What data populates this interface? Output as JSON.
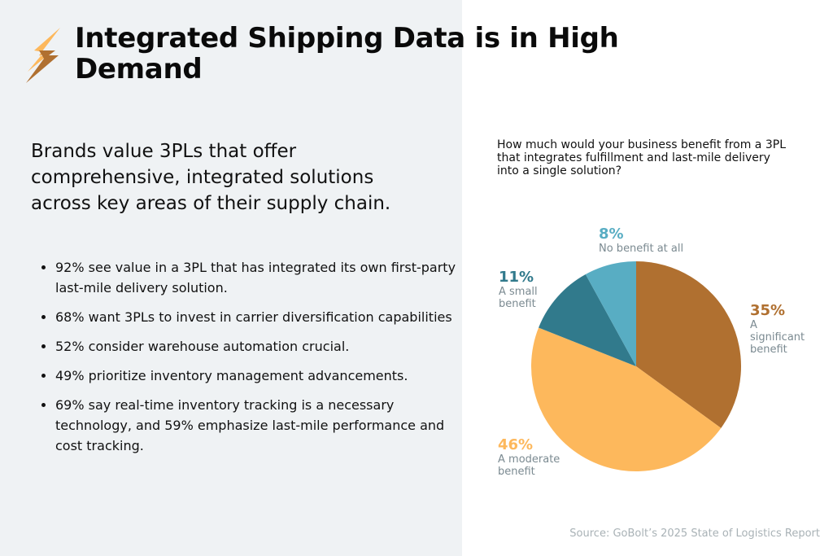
{
  "title": "Integrated Shipping Data is in High Demand",
  "logo_icon": "lightning-bolt-icon",
  "subhead": "Brands value 3PLs that offer comprehensive, integrated solutions across key areas of their supply chain.",
  "bullets": [
    "92% see value in a 3PL that has integrated its own first-party last-mile delivery solution.",
    "68% want 3PLs to invest in carrier diversification capabilities",
    "52% consider warehouse automation crucial.",
    "49% prioritize inventory management advancements.",
    "69% say real-time inventory tracking is a necessary technology, and 59% emphasize last-mile performance and cost tracking."
  ],
  "source": "Source: GoBolt’s 2025 State of Logistics Report",
  "chart_data": {
    "type": "pie",
    "title": "How much would your business benefit from a 3PL that integrates fulfillment and last-mile delivery into a single solution?",
    "start": "top, clockwise",
    "slices": [
      {
        "label": "A significant benefit",
        "value": 35,
        "value_label": "35%",
        "color": "#b07030"
      },
      {
        "label": "A moderate benefit",
        "value": 46,
        "value_label": "46%",
        "color": "#fdb85c"
      },
      {
        "label": "A small benefit",
        "value": 11,
        "value_label": "11%",
        "color": "#317a8c"
      },
      {
        "label": "No benefit at all",
        "value": 8,
        "value_label": "8%",
        "color": "#58adc3"
      }
    ]
  }
}
